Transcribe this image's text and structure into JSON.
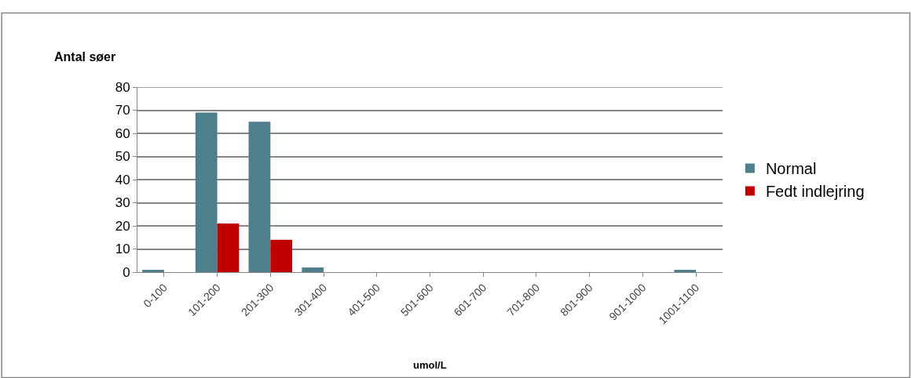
{
  "chart_data": {
    "type": "bar",
    "xlabel": "umol/L",
    "ylabel": "Antal søer",
    "categories": [
      "0-100",
      "101-200",
      "201-300",
      "301-400",
      "401-500",
      "501-600",
      "601-700",
      "701-800",
      "801-900",
      "901-1000",
      "1001-1100"
    ],
    "series": [
      {
        "name": "Normal",
        "color": "#4f7f8c",
        "values": [
          1,
          69,
          65,
          2,
          0,
          0,
          0,
          0,
          0,
          0,
          1
        ]
      },
      {
        "name": "Fedt indlejring",
        "color": "#c00000",
        "values": [
          0,
          21,
          14,
          0,
          0,
          0,
          0,
          0,
          0,
          0,
          0
        ]
      }
    ],
    "ylim": [
      0,
      80
    ],
    "yticks": [
      0,
      10,
      20,
      30,
      40,
      50,
      60,
      70,
      80
    ],
    "grid": "y",
    "legend": "right"
  }
}
